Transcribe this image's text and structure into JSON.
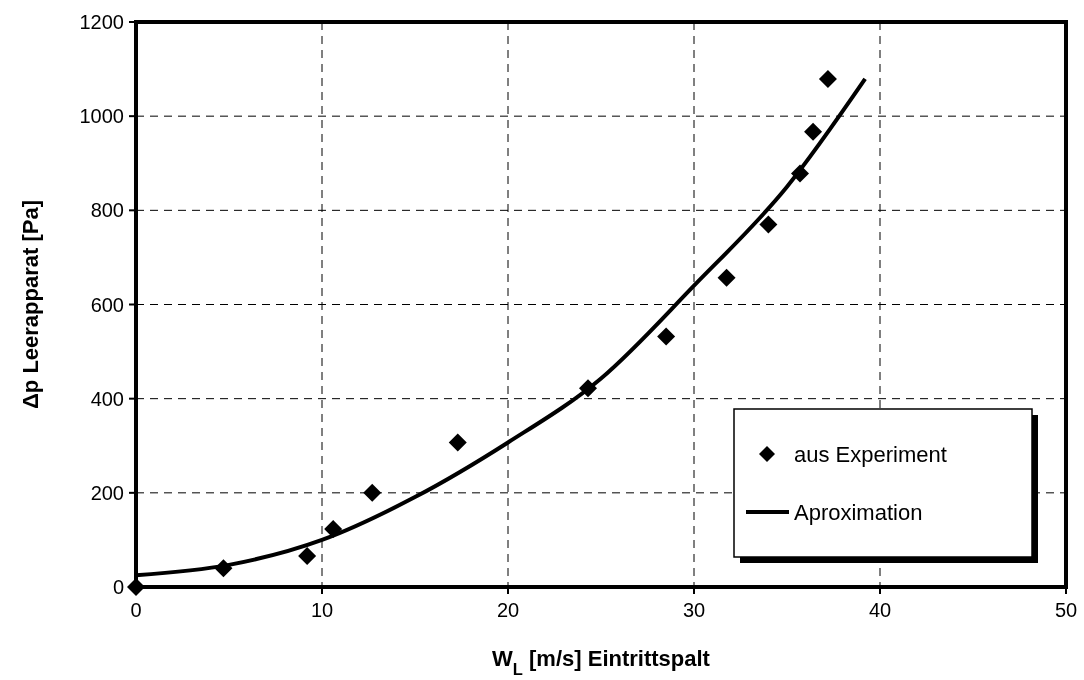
{
  "chart_data": {
    "type": "scatter",
    "xlabel": "W$_{L}$ [m/s] Eintrittspalt",
    "ylabel": "Δp Leerapparat [Pa]",
    "xlim": [
      0,
      50
    ],
    "ylim": [
      0,
      1200
    ],
    "xticks": [
      0,
      10,
      20,
      30,
      40,
      50
    ],
    "yticks": [
      0,
      200,
      400,
      600,
      800,
      1000,
      1200
    ],
    "grid": true,
    "legend": "bottom right",
    "series": [
      {
        "name": "aus Experiment",
        "type": "scatter",
        "marker": "diamond",
        "color": "#000000",
        "x": [
          0,
          4.7,
          9.2,
          10.6,
          12.7,
          17.3,
          24.3,
          28.5,
          31.75,
          34.0,
          35.7,
          36.4,
          37.2
        ],
        "values": [
          0,
          40,
          66,
          123,
          200,
          307,
          422,
          532,
          657,
          770,
          878,
          967,
          1079
        ]
      },
      {
        "name": "Aproximation",
        "type": "line",
        "marker": "none",
        "line_style": "solid",
        "color": "#000000",
        "x": [
          0,
          5,
          10,
          15,
          20,
          25,
          30,
          35,
          39.2
        ],
        "values": [
          25,
          47,
          100,
          191,
          307,
          443,
          640,
          850,
          1079
        ]
      }
    ]
  }
}
